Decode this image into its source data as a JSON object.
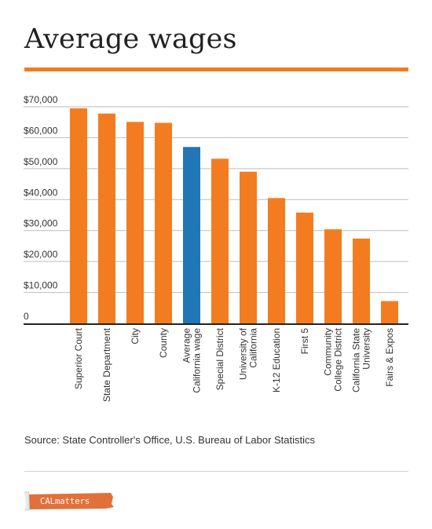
{
  "title": "Average wages",
  "source": "Source: State Controller's Office, U.S. Bureau of Labor Statistics",
  "logo_text": "CALmatters",
  "colors": {
    "accent": "#f47c20",
    "highlight": "#2176b6",
    "grid": "#bdbdbd",
    "axis": "#222222",
    "text": "#333333"
  },
  "chart_data": {
    "type": "bar",
    "title": "Average wages",
    "xlabel": "",
    "ylabel": "",
    "ylim": [
      0,
      70000
    ],
    "yticks": [
      0,
      10000,
      20000,
      30000,
      40000,
      50000,
      60000,
      70000
    ],
    "ytick_labels": [
      "0",
      "$10,000",
      "$20,000",
      "$30,000",
      "$40,000",
      "$50,000",
      "$60,000",
      "$70,000"
    ],
    "grid": true,
    "categories": [
      [
        "Superior Court"
      ],
      [
        "State Department"
      ],
      [
        "City"
      ],
      [
        "County"
      ],
      [
        "Average",
        "California wage"
      ],
      [
        "Special District"
      ],
      [
        "University of",
        "California"
      ],
      [
        "K-12 Education"
      ],
      [
        "First 5"
      ],
      [
        "Community",
        "College District"
      ],
      [
        "California State",
        "University"
      ],
      [
        "Fairs & Expos"
      ]
    ],
    "values": [
      69500,
      67800,
      65100,
      64800,
      57000,
      53200,
      49000,
      40500,
      35800,
      30400,
      27400,
      7200
    ],
    "highlight_index": 4
  }
}
